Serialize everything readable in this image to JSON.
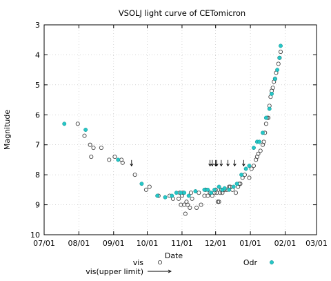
{
  "chart_data": {
    "type": "scatter",
    "title": "VSOLJ light curve of CETomicron",
    "xlabel": "Date",
    "ylabel": "Magnitude",
    "x_ticks": [
      "07/01",
      "08/01",
      "09/01",
      "10/01",
      "11/01",
      "12/01",
      "01/01",
      "02/01",
      "03/01"
    ],
    "y_ticks": [
      "3",
      "4",
      "5",
      "6",
      "7",
      "8",
      "9",
      "10"
    ],
    "xlim": [
      "07/01",
      "03/01"
    ],
    "ylim": [
      10,
      3
    ],
    "y_inverted": true,
    "legend_position": "bottom",
    "colors": {
      "odr": "#26c6c6",
      "vis_edge": "#444444"
    },
    "series": [
      {
        "name": "vis",
        "marker": "open-circle",
        "points": [
          [
            "07/31",
            6.3
          ],
          [
            "08/06",
            6.7
          ],
          [
            "08/11",
            7.0
          ],
          [
            "08/12",
            7.4
          ],
          [
            "08/14",
            7.1
          ],
          [
            "08/21",
            7.1
          ],
          [
            "08/28",
            7.5
          ],
          [
            "09/02",
            7.4
          ],
          [
            "09/08",
            7.5
          ],
          [
            "09/09",
            7.6
          ],
          [
            "09/20",
            8.0
          ],
          [
            "09/30",
            8.5
          ],
          [
            "10/03",
            8.4
          ],
          [
            "10/11",
            8.7
          ],
          [
            "10/21",
            8.7
          ],
          [
            "10/24",
            8.8
          ],
          [
            "10/29",
            8.8
          ],
          [
            "10/30",
            8.6
          ],
          [
            "10/31",
            9.0
          ],
          [
            "11/01",
            8.7
          ],
          [
            "11/02",
            8.6
          ],
          [
            "11/03",
            9.0
          ],
          [
            "11/04",
            9.3
          ],
          [
            "11/05",
            8.9
          ],
          [
            "11/06",
            9.0
          ],
          [
            "11/08",
            9.1
          ],
          [
            "11/09",
            8.6
          ],
          [
            "11/10",
            8.8
          ],
          [
            "11/14",
            9.1
          ],
          [
            "11/16",
            8.6
          ],
          [
            "11/18",
            9.0
          ],
          [
            "11/21",
            8.7
          ],
          [
            "11/22",
            8.5
          ],
          [
            "11/24",
            8.7
          ],
          [
            "11/26",
            8.6
          ],
          [
            "11/28",
            8.7
          ],
          [
            "11/30",
            8.6
          ],
          [
            "12/01",
            8.5
          ],
          [
            "12/02",
            8.6
          ],
          [
            "12/03",
            8.9
          ],
          [
            "12/04",
            8.9
          ],
          [
            "12/05",
            8.6
          ],
          [
            "12/06",
            8.5
          ],
          [
            "12/07",
            8.6
          ],
          [
            "12/08",
            8.5
          ],
          [
            "12/09",
            8.5
          ],
          [
            "12/11",
            8.5
          ],
          [
            "12/13",
            8.4
          ],
          [
            "12/14",
            8.4
          ],
          [
            "12/16",
            8.5
          ],
          [
            "12/19",
            8.6
          ],
          [
            "12/21",
            8.4
          ],
          [
            "12/22",
            8.3
          ],
          [
            "12/23",
            8.3
          ],
          [
            "12/25",
            8.1
          ],
          [
            "12/27",
            8.0
          ],
          [
            "12/31",
            8.1
          ],
          [
            "01/02",
            7.8
          ],
          [
            "01/04",
            7.7
          ],
          [
            "01/06",
            7.5
          ],
          [
            "01/07",
            7.4
          ],
          [
            "01/08",
            7.3
          ],
          [
            "01/10",
            7.2
          ],
          [
            "01/12",
            7.0
          ],
          [
            "01/13",
            6.9
          ],
          [
            "01/14",
            6.6
          ],
          [
            "01/15",
            6.3
          ],
          [
            "01/16",
            6.1
          ],
          [
            "01/17",
            6.1
          ],
          [
            "01/18",
            5.7
          ],
          [
            "01/19",
            5.4
          ],
          [
            "01/20",
            5.2
          ],
          [
            "01/21",
            5.1
          ],
          [
            "01/22",
            4.9
          ],
          [
            "01/23",
            4.8
          ],
          [
            "01/24",
            4.6
          ],
          [
            "01/26",
            4.3
          ],
          [
            "01/27",
            4.1
          ],
          [
            "01/28",
            3.9
          ]
        ]
      },
      {
        "name": "vis(upper limit)",
        "marker": "down-arrow",
        "points": [
          [
            "09/17",
            7.6
          ],
          [
            "11/26",
            7.6
          ],
          [
            "11/28",
            7.6
          ],
          [
            "12/01",
            7.6
          ],
          [
            "12/02",
            7.6
          ],
          [
            "12/06",
            7.6
          ],
          [
            "12/12",
            7.6
          ],
          [
            "12/18",
            7.6
          ],
          [
            "12/26",
            7.6
          ]
        ]
      },
      {
        "name": "Odr",
        "marker": "filled-circle",
        "points": [
          [
            "07/19",
            6.3
          ],
          [
            "08/07",
            6.5
          ],
          [
            "09/05",
            7.5
          ],
          [
            "09/26",
            8.3
          ],
          [
            "10/10",
            8.7
          ],
          [
            "10/17",
            8.75
          ],
          [
            "10/23",
            8.7
          ],
          [
            "10/27",
            8.6
          ],
          [
            "10/31",
            8.6
          ],
          [
            "11/03",
            8.6
          ],
          [
            "11/07",
            8.7
          ],
          [
            "11/13",
            8.55
          ],
          [
            "11/21",
            8.5
          ],
          [
            "11/24",
            8.5
          ],
          [
            "11/27",
            8.6
          ],
          [
            "11/30",
            8.5
          ],
          [
            "12/04",
            8.4
          ],
          [
            "12/07",
            8.5
          ],
          [
            "12/09",
            8.45
          ],
          [
            "12/13",
            8.5
          ],
          [
            "12/17",
            8.4
          ],
          [
            "12/20",
            8.3
          ],
          [
            "12/24",
            8.0
          ],
          [
            "12/28",
            7.8
          ],
          [
            "12/31",
            7.7
          ],
          [
            "01/04",
            7.1
          ],
          [
            "01/07",
            6.9
          ],
          [
            "01/09",
            6.9
          ],
          [
            "01/12",
            6.6
          ],
          [
            "01/15",
            6.1
          ],
          [
            "01/18",
            5.8
          ],
          [
            "01/20",
            5.3
          ],
          [
            "01/23",
            4.8
          ],
          [
            "01/25",
            4.5
          ],
          [
            "01/27",
            4.1
          ],
          [
            "01/28",
            3.7
          ]
        ]
      }
    ]
  }
}
